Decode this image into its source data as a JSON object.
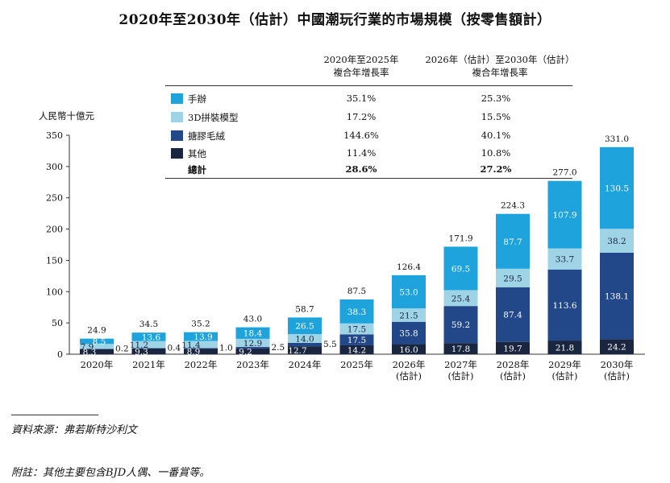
{
  "title": "2020年至2030年（估計）中國潮玩行業的市場規模（按零售額計）",
  "cagr_headers": {
    "col1_line1": "2020年至2025年",
    "col1_line2": "複合年增長率",
    "col2_line1": "2026年（估計）至2030年（估計）",
    "col2_line2": "複合年增長率"
  },
  "legend": [
    {
      "name": "手辦",
      "color": "#1ea3dc",
      "cagr1": "35.1%",
      "cagr2": "25.3%"
    },
    {
      "name": "3D拼裝模型",
      "color": "#9fd3e6",
      "cagr1": "17.2%",
      "cagr2": "15.5%"
    },
    {
      "name": "搪膠毛絨",
      "color": "#22488a",
      "cagr1": "144.6%",
      "cagr2": "40.1%"
    },
    {
      "name": "其他",
      "color": "#1a2540",
      "cagr1": "11.4%",
      "cagr2": "10.8%"
    }
  ],
  "total_row": {
    "name": "總計",
    "cagr1": "28.6%",
    "cagr2": "27.2%"
  },
  "unit_label": "人民幣十億元",
  "source": "資料來源：弗若斯特沙利文",
  "note": "附註：其他主要包含BJD人偶、一番賞等。",
  "chart_data": {
    "type": "bar",
    "stacked": true,
    "ylim": [
      0,
      350
    ],
    "yticks": [
      0,
      50,
      100,
      150,
      200,
      250,
      300,
      350
    ],
    "categories": [
      [
        "2020年"
      ],
      [
        "2021年"
      ],
      [
        "2022年"
      ],
      [
        "2023年"
      ],
      [
        "2024年"
      ],
      [
        "2025年"
      ],
      [
        "2026年",
        "(估計)"
      ],
      [
        "2027年",
        "(估計)"
      ],
      [
        "2028年",
        "(估計)"
      ],
      [
        "2029年",
        "(估計)"
      ],
      [
        "2030年",
        "(估計)"
      ]
    ],
    "series": [
      {
        "name": "其他",
        "color": "#1a2540",
        "values": [
          8.3,
          9.3,
          8.9,
          9.2,
          12.7,
          14.2,
          16.0,
          17.8,
          19.7,
          21.8,
          24.2
        ]
      },
      {
        "name": "搪膠毛絨",
        "color": "#22488a",
        "values": [
          0.2,
          0.4,
          1.0,
          2.5,
          5.5,
          17.5,
          35.8,
          59.2,
          87.4,
          113.6,
          138.1
        ]
      },
      {
        "name": "3D拼裝模型",
        "color": "#9fd3e6",
        "values": [
          7.9,
          11.2,
          11.4,
          12.9,
          14.0,
          17.5,
          21.5,
          25.4,
          29.5,
          33.7,
          38.2
        ]
      },
      {
        "name": "手辦",
        "color": "#1ea3dc",
        "values": [
          8.5,
          13.6,
          13.9,
          18.4,
          26.5,
          38.3,
          53.0,
          69.5,
          87.7,
          107.9,
          130.5
        ]
      }
    ],
    "totals": [
      24.9,
      34.5,
      35.2,
      43.0,
      58.7,
      87.5,
      126.4,
      171.9,
      224.3,
      277.0,
      331.0
    ]
  }
}
